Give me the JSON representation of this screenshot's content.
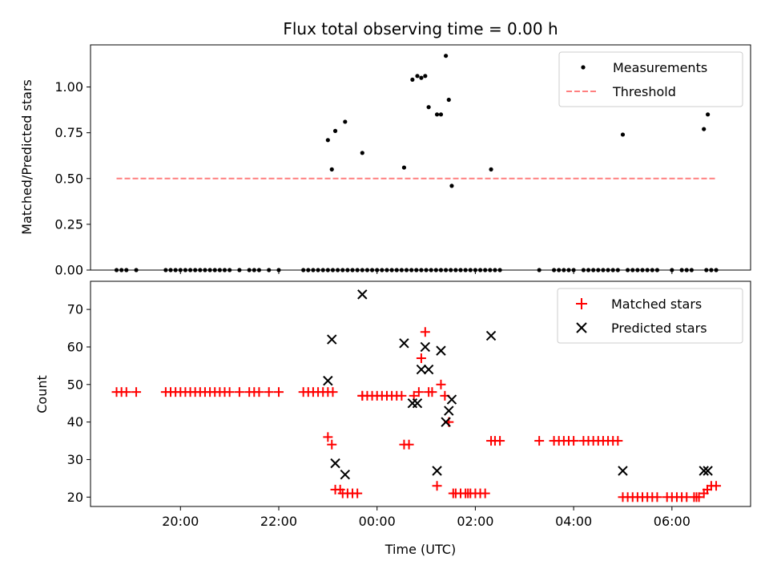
{
  "chart_data": {
    "type": "scatter",
    "title": "Flux total observing time = 0.00 h",
    "xlabel": "Time (UTC)",
    "x_unit": "hours relative to 00:00 UTC",
    "x_ticks": [
      {
        "value": -4,
        "label": "20:00"
      },
      {
        "value": -2,
        "label": "22:00"
      },
      {
        "value": 0,
        "label": "00:00"
      },
      {
        "value": 2,
        "label": "02:00"
      },
      {
        "value": 4,
        "label": "04:00"
      },
      {
        "value": 6,
        "label": "06:00"
      }
    ],
    "xlim": [
      -5.83,
      7.6
    ],
    "panels": [
      {
        "ylabel": "Matched/Predicted stars",
        "ylim": [
          0,
          1.23
        ],
        "y_ticks": [
          {
            "value": 0,
            "label": "0.00"
          },
          {
            "value": 0.25,
            "label": "0.25"
          },
          {
            "value": 0.5,
            "label": "0.50"
          },
          {
            "value": 0.75,
            "label": "0.75"
          },
          {
            "value": 1.0,
            "label": "1.00"
          }
        ],
        "legend": {
          "position": "top-right",
          "entries": [
            "Measurements",
            "Threshold"
          ]
        },
        "series": [
          {
            "name": "Measurements",
            "marker": "dot",
            "color": "#000000",
            "x": [
              -5.3,
              -5.2,
              -5.1,
              -4.9,
              -4.3,
              -4.2,
              -4.1,
              -4.0,
              -3.9,
              -3.8,
              -3.7,
              -3.6,
              -3.5,
              -3.4,
              -3.3,
              -3.2,
              -3.1,
              -3.0,
              -2.8,
              -2.6,
              -2.5,
              -2.4,
              -2.2,
              -2.0,
              -1.5,
              -1.4,
              -1.3,
              -1.2,
              -1.1,
              -1.0,
              -0.9,
              -0.8,
              -0.7,
              -0.6,
              -0.5,
              -0.4,
              -0.3,
              -0.2,
              -0.1,
              0.0,
              0.1,
              0.2,
              0.3,
              0.4,
              0.5,
              0.6,
              0.7,
              0.8,
              0.9,
              1.0,
              1.1,
              1.2,
              1.3,
              1.4,
              1.5,
              1.6,
              1.7,
              1.8,
              1.9,
              2.0,
              2.1,
              2.2,
              2.3,
              2.4,
              2.5,
              3.3,
              3.6,
              3.7,
              3.8,
              3.9,
              4.0,
              4.2,
              4.3,
              4.4,
              4.5,
              4.6,
              4.7,
              4.8,
              4.9,
              5.1,
              5.2,
              5.3,
              5.4,
              5.5,
              5.6,
              5.7,
              6.0,
              6.2,
              6.3,
              6.4,
              6.7,
              6.8,
              6.9,
              -1.0,
              -0.92,
              -0.85,
              -0.65,
              -0.3,
              0.55,
              0.72,
              0.82,
              0.9,
              0.98,
              1.05,
              1.22,
              1.3,
              1.4,
              1.46,
              1.52,
              2.32,
              5.0,
              6.65,
              6.73
            ],
            "y": [
              0,
              0,
              0,
              0,
              0,
              0,
              0,
              0,
              0,
              0,
              0,
              0,
              0,
              0,
              0,
              0,
              0,
              0,
              0,
              0,
              0,
              0,
              0,
              0,
              0,
              0,
              0,
              0,
              0,
              0,
              0,
              0,
              0,
              0,
              0,
              0,
              0,
              0,
              0,
              0,
              0,
              0,
              0,
              0,
              0,
              0,
              0,
              0,
              0,
              0,
              0,
              0,
              0,
              0,
              0,
              0,
              0,
              0,
              0,
              0,
              0,
              0,
              0,
              0,
              0,
              0,
              0,
              0,
              0,
              0,
              0,
              0,
              0,
              0,
              0,
              0,
              0,
              0,
              0,
              0,
              0,
              0,
              0,
              0,
              0,
              0,
              0,
              0,
              0,
              0,
              0,
              0,
              0,
              0.71,
              0.55,
              0.76,
              0.81,
              0.64,
              0.56,
              1.04,
              1.06,
              1.05,
              1.06,
              0.89,
              0.85,
              0.85,
              1.17,
              0.93,
              0.46,
              0.55,
              0.74,
              0.77,
              0.85
            ]
          },
          {
            "name": "Threshold",
            "marker": "dashed-line",
            "color": "#ff7f7f",
            "x": [
              -5.3,
              6.9
            ],
            "y": [
              0.5,
              0.5
            ]
          }
        ]
      },
      {
        "ylabel": "Count",
        "ylim": [
          17.5,
          77.5
        ],
        "y_ticks": [
          {
            "value": 20,
            "label": "20"
          },
          {
            "value": 30,
            "label": "30"
          },
          {
            "value": 40,
            "label": "40"
          },
          {
            "value": 50,
            "label": "50"
          },
          {
            "value": 60,
            "label": "60"
          },
          {
            "value": 70,
            "label": "70"
          }
        ],
        "legend": {
          "position": "top-right",
          "entries": [
            "Matched stars",
            "Predicted stars"
          ]
        },
        "series": [
          {
            "name": "Matched stars",
            "marker": "plus",
            "color": "#ff0000",
            "x": [
              -5.3,
              -5.2,
              -5.1,
              -4.9,
              -4.3,
              -4.2,
              -4.1,
              -4.0,
              -3.9,
              -3.8,
              -3.7,
              -3.6,
              -3.5,
              -3.4,
              -3.3,
              -3.2,
              -3.1,
              -3.0,
              -2.8,
              -2.6,
              -2.5,
              -2.4,
              -2.2,
              -2.0,
              -1.5,
              -1.4,
              -1.3,
              -1.2,
              -1.1,
              -1.0,
              -0.9,
              -1.0,
              -0.92,
              -0.85,
              -0.75,
              -0.7,
              -0.6,
              -0.5,
              -0.4,
              -0.3,
              -0.3,
              -0.2,
              -0.1,
              0.0,
              0.1,
              0.2,
              0.3,
              0.4,
              0.5,
              0.55,
              0.65,
              0.75,
              0.85,
              0.9,
              0.98,
              1.05,
              1.12,
              1.22,
              1.3,
              1.38,
              1.46,
              1.55,
              1.6,
              1.7,
              1.8,
              1.85,
              1.9,
              2.0,
              2.1,
              2.2,
              2.32,
              2.4,
              2.5,
              3.3,
              3.6,
              3.7,
              3.8,
              3.9,
              4.0,
              4.2,
              4.3,
              4.4,
              4.5,
              4.6,
              4.7,
              4.8,
              4.9,
              5.0,
              5.1,
              5.2,
              5.3,
              5.4,
              5.5,
              5.6,
              5.7,
              5.9,
              6.0,
              6.1,
              6.2,
              6.3,
              6.45,
              6.5,
              6.55,
              6.65,
              6.72,
              6.8,
              6.9
            ],
            "y": [
              48,
              48,
              48,
              48,
              48,
              48,
              48,
              48,
              48,
              48,
              48,
              48,
              48,
              48,
              48,
              48,
              48,
              48,
              48,
              48,
              48,
              48,
              48,
              48,
              48,
              48,
              48,
              48,
              48,
              48,
              48,
              36,
              34,
              22,
              22,
              21,
              21,
              21,
              21,
              47,
              47,
              47,
              47,
              47,
              47,
              47,
              47,
              47,
              47,
              34,
              34,
              47,
              48,
              57,
              64,
              48,
              48,
              23,
              50,
              47,
              40,
              21,
              21,
              21,
              21,
              21,
              21,
              21,
              21,
              21,
              35,
              35,
              35,
              35,
              35,
              35,
              35,
              35,
              35,
              35,
              35,
              35,
              35,
              35,
              35,
              35,
              35,
              20,
              20,
              20,
              20,
              20,
              20,
              20,
              20,
              20,
              20,
              20,
              20,
              20,
              20,
              20,
              20,
              21,
              22,
              23,
              23
            ]
          },
          {
            "name": "Predicted stars",
            "marker": "x",
            "color": "#000000",
            "x": [
              -1.0,
              -0.92,
              -0.85,
              -0.65,
              -0.3,
              0.55,
              0.72,
              0.82,
              0.9,
              0.98,
              1.05,
              1.22,
              1.3,
              1.4,
              1.46,
              1.52,
              2.32,
              5.0,
              6.65,
              6.73
            ],
            "y": [
              51,
              62,
              29,
              26,
              74,
              61,
              45,
              45,
              54,
              60,
              54,
              27,
              59,
              40,
              43,
              46,
              63,
              27,
              27,
              27
            ]
          }
        ]
      }
    ]
  }
}
